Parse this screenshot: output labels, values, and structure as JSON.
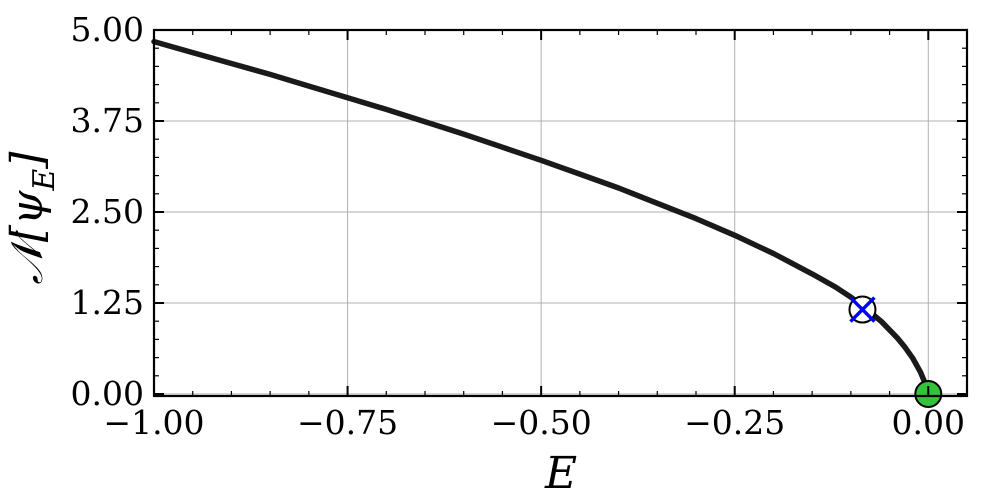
{
  "chart_data": {
    "type": "line",
    "title": "",
    "xlabel": "E",
    "ylabel": "𝒩[ψ_E]",
    "ylabel_parts": {
      "main": "𝒩[ψ",
      "sub": "E",
      "close": "]"
    },
    "xlim": [
      -1.0,
      0.0
    ],
    "ylim": [
      0.0,
      5.0
    ],
    "xticks": [
      -1.0,
      -0.75,
      -0.5,
      -0.25,
      0.0
    ],
    "xtick_labels": [
      "−1.00",
      "−0.75",
      "−0.50",
      "−0.25",
      "0.00"
    ],
    "yticks": [
      0.0,
      1.25,
      2.5,
      3.75,
      5.0
    ],
    "ytick_labels": [
      "0.00",
      "1.25",
      "2.50",
      "3.75",
      "5.00"
    ],
    "grid": true,
    "series": [
      {
        "x": [
          -1.0,
          -0.95,
          -0.9,
          -0.85,
          -0.8,
          -0.75,
          -0.7,
          -0.65,
          -0.6,
          -0.55,
          -0.5,
          -0.45,
          -0.4,
          -0.35,
          -0.3,
          -0.25,
          -0.2,
          -0.15,
          -0.12,
          -0.1,
          -0.08,
          -0.06,
          -0.04,
          -0.03,
          -0.02,
          -0.01,
          -0.005,
          0.0
        ],
        "y": [
          4.84,
          4.69,
          4.54,
          4.39,
          4.23,
          4.07,
          3.91,
          3.74,
          3.57,
          3.39,
          3.21,
          3.02,
          2.83,
          2.62,
          2.41,
          2.18,
          1.93,
          1.65,
          1.47,
          1.33,
          1.17,
          0.99,
          0.77,
          0.64,
          0.49,
          0.3,
          0.17,
          0.0
        ],
        "color": "#1a1a1a"
      }
    ],
    "markers": [
      {
        "type": "circle-cross",
        "x": -0.085,
        "y": 1.16,
        "face_color": "#ffffff",
        "edge_color": "#000000",
        "cross_color": "#0000ff"
      },
      {
        "type": "filled-circle",
        "x": 0.0,
        "y": 0.0,
        "face_color": "#33c33a",
        "edge_color": "#000000"
      }
    ]
  }
}
